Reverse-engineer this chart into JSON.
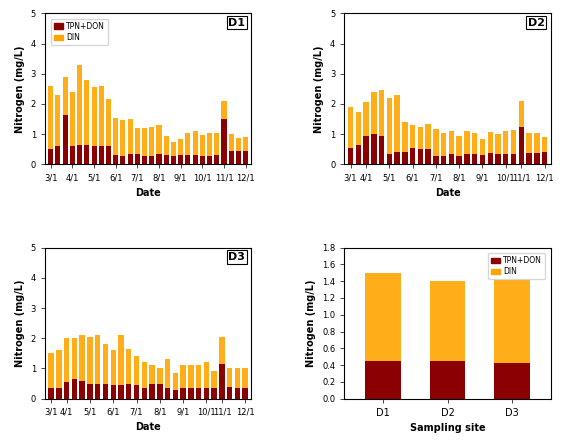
{
  "D1": {
    "TPN_DON": [
      0.5,
      0.6,
      1.65,
      0.6,
      0.65,
      0.65,
      0.6,
      0.6,
      0.6,
      0.3,
      0.27,
      0.35,
      0.35,
      0.27,
      0.28,
      0.35,
      0.3,
      0.28,
      0.3,
      0.3,
      0.3,
      0.28,
      0.28,
      0.3,
      1.5,
      0.45,
      0.43,
      0.45
    ],
    "DIN": [
      2.1,
      1.7,
      1.25,
      1.8,
      2.65,
      2.15,
      1.95,
      2.0,
      1.55,
      1.25,
      1.2,
      1.15,
      0.85,
      0.95,
      0.95,
      0.95,
      0.65,
      0.45,
      0.55,
      0.75,
      0.8,
      0.7,
      0.75,
      0.75,
      0.6,
      0.55,
      0.45,
      0.45
    ],
    "xtick_pos": [
      0,
      3,
      6,
      9,
      12,
      15,
      18,
      21,
      24,
      27
    ],
    "xtick_labels": [
      "3/1",
      "4/1",
      "5/1",
      "6/1",
      "7/1",
      "8/1",
      "9/1",
      "10/1",
      "11/1",
      "12/1"
    ],
    "ylim": [
      0,
      5
    ],
    "yticks": [
      0,
      1,
      2,
      3,
      4,
      5
    ],
    "label": "D1"
  },
  "D2": {
    "TPN_DON": [
      0.55,
      0.65,
      0.95,
      1.0,
      0.95,
      0.35,
      0.4,
      0.4,
      0.55,
      0.5,
      0.5,
      0.28,
      0.28,
      0.35,
      0.28,
      0.35,
      0.35,
      0.3,
      0.38,
      0.35,
      0.35,
      0.35,
      1.25,
      0.38,
      0.38,
      0.42
    ],
    "DIN": [
      1.35,
      1.1,
      1.1,
      1.4,
      1.5,
      1.85,
      1.9,
      1.0,
      0.75,
      0.75,
      0.85,
      0.9,
      0.75,
      0.75,
      0.65,
      0.75,
      0.7,
      0.55,
      0.7,
      0.65,
      0.75,
      0.8,
      0.85,
      0.65,
      0.65,
      0.5
    ],
    "xtick_pos": [
      0,
      2,
      5,
      8,
      11,
      14,
      17,
      20,
      22,
      25
    ],
    "xtick_labels": [
      "3/1",
      "4/1",
      "5/1",
      "6/1",
      "7/1",
      "8/1",
      "9/1",
      "10/1",
      "11/1",
      "12/1"
    ],
    "ylim": [
      0,
      5
    ],
    "yticks": [
      0,
      1,
      2,
      3,
      4,
      5
    ],
    "label": "D2"
  },
  "D3": {
    "TPN_DON": [
      0.35,
      0.35,
      0.55,
      0.65,
      0.6,
      0.5,
      0.5,
      0.5,
      0.45,
      0.45,
      0.5,
      0.45,
      0.35,
      0.5,
      0.5,
      0.35,
      0.3,
      0.35,
      0.35,
      0.35,
      0.35,
      0.35,
      1.15,
      0.38,
      0.35,
      0.35
    ],
    "DIN": [
      1.15,
      1.25,
      1.45,
      1.35,
      1.5,
      1.55,
      1.6,
      1.3,
      1.15,
      1.65,
      1.15,
      0.95,
      0.85,
      0.6,
      0.5,
      0.95,
      0.55,
      0.75,
      0.75,
      0.75,
      0.85,
      0.55,
      0.9,
      0.65,
      0.65,
      0.65
    ],
    "xtick_pos": [
      0,
      2,
      5,
      8,
      11,
      14,
      17,
      20,
      22,
      25
    ],
    "xtick_labels": [
      "3/1",
      "4/1",
      "5/1",
      "6/1",
      "7/1",
      "8/1",
      "9/1",
      "10/1",
      "11/1",
      "12/1"
    ],
    "ylim": [
      0,
      5
    ],
    "yticks": [
      0,
      1,
      2,
      3,
      4,
      5
    ],
    "label": "D3"
  },
  "avg": {
    "sites": [
      "D1",
      "D2",
      "D3"
    ],
    "TPN_DON": [
      0.45,
      0.45,
      0.43
    ],
    "DIN": [
      1.05,
      0.95,
      0.98
    ],
    "ylim": [
      0,
      1.8
    ],
    "yticks": [
      0.0,
      0.2,
      0.4,
      0.6,
      0.8,
      1.0,
      1.2,
      1.4,
      1.6,
      1.8
    ]
  },
  "color_tpn": "#8B0000",
  "color_din": "#FFA500",
  "bar_width": 0.7,
  "xlabel": "Date",
  "ylabel": "Nitrogen (mg/L)",
  "ylabel_avg": "Nitrogen (mg/L)",
  "xlabel_avg": "Sampling site"
}
